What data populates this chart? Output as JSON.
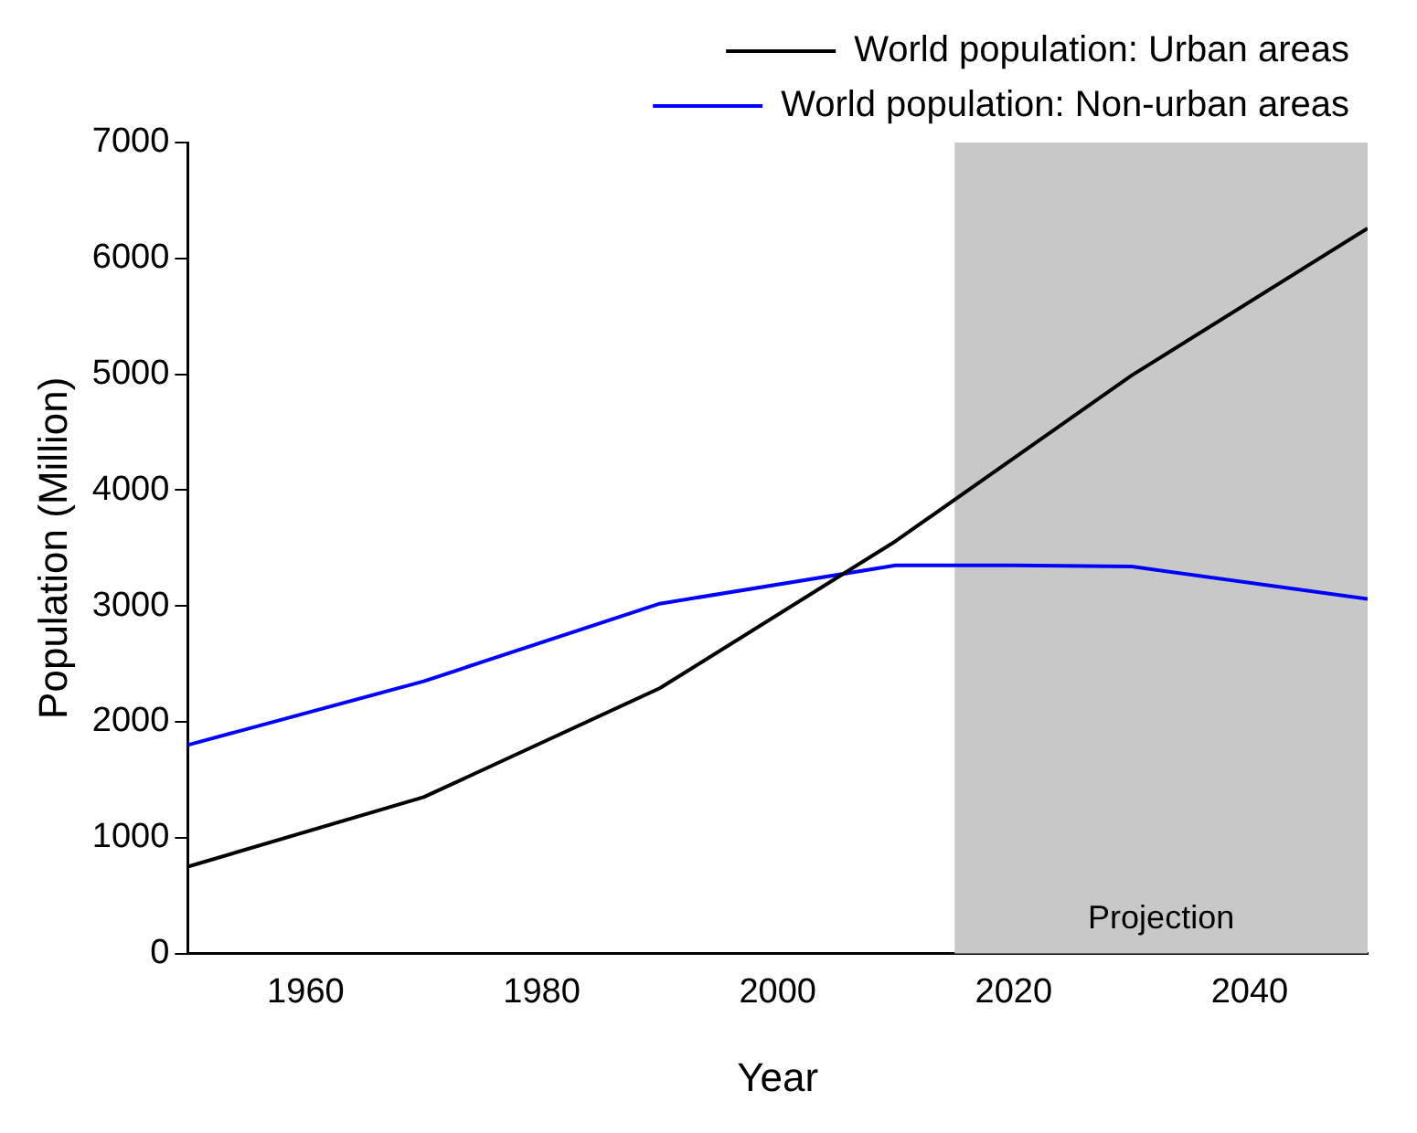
{
  "chart_data": {
    "type": "line",
    "xlabel": "Year",
    "ylabel": "Population (Million)",
    "xlim": [
      1950,
      2050
    ],
    "xticks": [
      1960,
      1980,
      2000,
      2020,
      2040
    ],
    "ylim": [
      0,
      7000
    ],
    "yticks": [
      0,
      1000,
      2000,
      3000,
      4000,
      5000,
      6000,
      7000
    ],
    "grid": false,
    "legend": "top right",
    "marker": "none",
    "line_style": "solid",
    "bands": [
      {
        "axis": "x",
        "from": 2015,
        "to": 2050,
        "label": "Projection",
        "color": "#c8c8c8"
      }
    ],
    "series": [
      {
        "name": "World population: Urban areas",
        "color": "#000000",
        "x": [
          1950,
          1970,
          1990,
          2010,
          2030,
          2050
        ],
        "values": [
          750,
          1350,
          2290,
          3560,
          4990,
          6260
        ]
      },
      {
        "name": "World population: Non-urban areas",
        "color": "#0000ff",
        "x": [
          1950,
          1970,
          1990,
          2010,
          2020,
          2030,
          2050
        ],
        "values": [
          1800,
          2350,
          3020,
          3350,
          3350,
          3340,
          3060
        ]
      }
    ]
  }
}
